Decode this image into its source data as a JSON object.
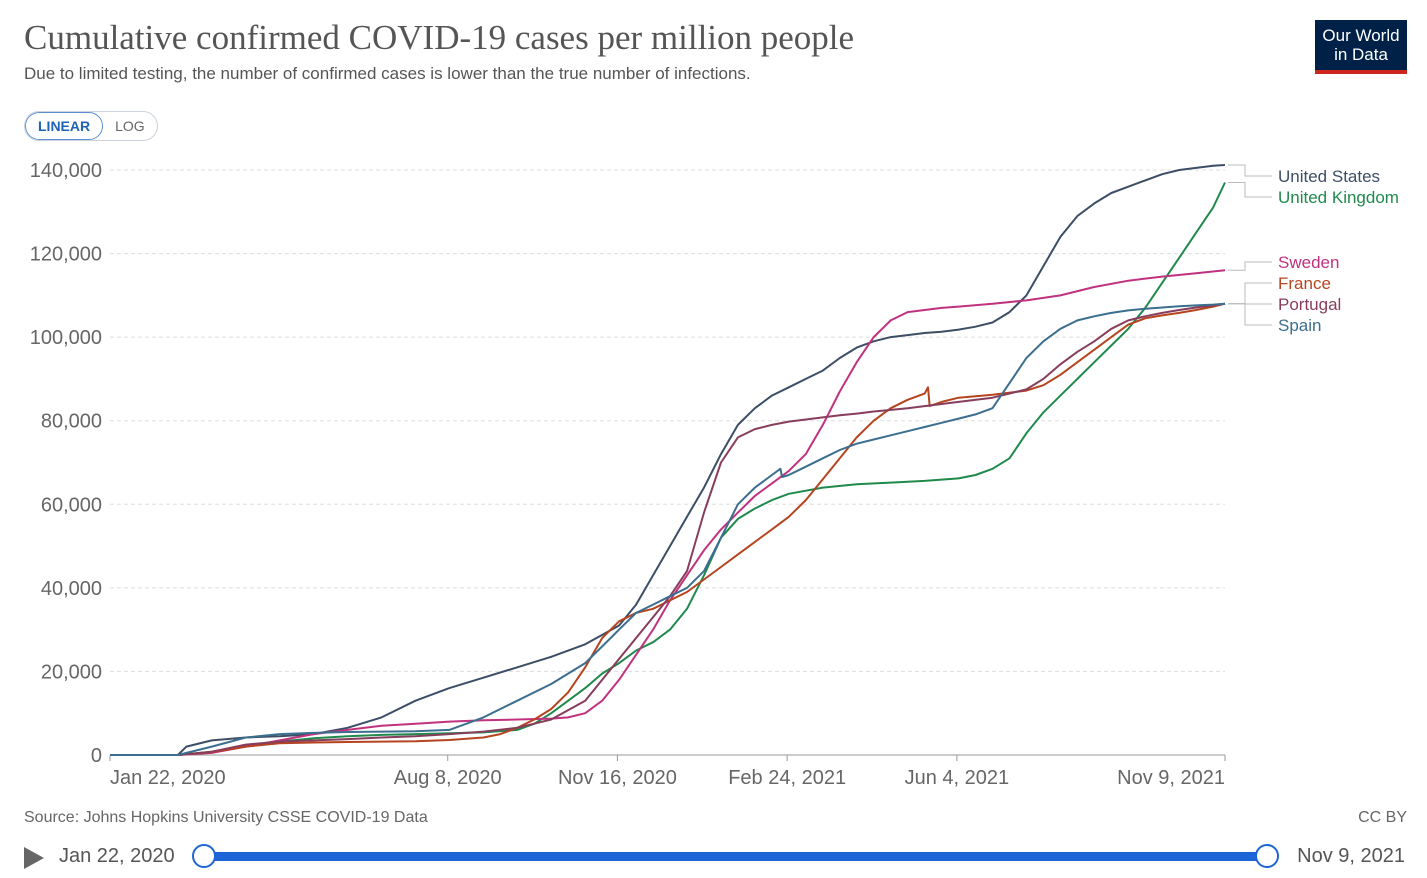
{
  "header": {
    "title": "Cumulative confirmed COVID-19 cases per million people",
    "subtitle": "Due to limited testing, the number of confirmed cases is lower than the true number of infections.",
    "logo_line1": "Our World",
    "logo_line2": "in Data"
  },
  "scale_toggle": {
    "linear_label": "LINEAR",
    "log_label": "LOG",
    "selected": "LINEAR"
  },
  "footer": {
    "source": "Source: Johns Hopkins University CSSE COVID-19 Data",
    "license": "CC BY"
  },
  "timeline": {
    "start_label": "Jan 22, 2020",
    "end_label": "Nov 9, 2021",
    "start_fraction": 0,
    "end_fraction": 1
  },
  "chart_data": {
    "type": "line",
    "title": "Cumulative confirmed COVID-19 cases per million people",
    "subtitle": "Due to limited testing, the number of confirmed cases is lower than the true number of infections.",
    "x_unit": "days since 2020-01-22",
    "xlim": [
      0,
      657
    ],
    "ylim": [
      0,
      140000
    ],
    "y_ticks": [
      0,
      20000,
      40000,
      60000,
      80000,
      100000,
      120000,
      140000
    ],
    "y_tick_labels": [
      "0",
      "20,000",
      "40,000",
      "60,000",
      "80,000",
      "100,000",
      "120,000",
      "140,000"
    ],
    "x_ticks": [
      {
        "x": 0,
        "label": "Jan 22, 2020"
      },
      {
        "x": 199,
        "label": "Aug 8, 2020"
      },
      {
        "x": 299,
        "label": "Nov 16, 2020"
      },
      {
        "x": 399,
        "label": "Feb 24, 2021"
      },
      {
        "x": 499,
        "label": "Jun 4, 2021"
      },
      {
        "x": 657,
        "label": "Nov 9, 2021"
      }
    ],
    "grid": "horizontal-dashed",
    "legend": "right, labels at line ends",
    "series": [
      {
        "name": "United States",
        "color": "#3c4e66",
        "x": [
          0,
          40,
          45,
          60,
          80,
          100,
          120,
          140,
          160,
          180,
          200,
          220,
          240,
          260,
          280,
          300,
          310,
          320,
          330,
          340,
          350,
          360,
          370,
          380,
          390,
          400,
          410,
          420,
          430,
          440,
          450,
          460,
          470,
          480,
          490,
          500,
          510,
          520,
          530,
          540,
          550,
          560,
          570,
          580,
          590,
          600,
          610,
          620,
          630,
          640,
          650,
          657
        ],
        "y": [
          0,
          0,
          2000,
          3500,
          4200,
          4500,
          5000,
          6500,
          9000,
          13000,
          16000,
          18500,
          21000,
          23500,
          26500,
          31000,
          36000,
          43000,
          50000,
          57000,
          64000,
          72000,
          79000,
          83000,
          86000,
          88000,
          90000,
          92000,
          95000,
          97500,
          99000,
          100000,
          100500,
          101000,
          101300,
          101800,
          102500,
          103500,
          106000,
          110000,
          117000,
          124000,
          129000,
          132000,
          134500,
          136000,
          137500,
          139000,
          140000,
          140500,
          141000,
          141200
        ]
      },
      {
        "name": "United Kingdom",
        "color": "#1f8a4c",
        "x": [
          0,
          40,
          60,
          80,
          100,
          120,
          140,
          160,
          180,
          200,
          220,
          240,
          250,
          260,
          270,
          280,
          290,
          300,
          310,
          320,
          330,
          340,
          350,
          360,
          370,
          380,
          390,
          400,
          420,
          440,
          460,
          480,
          500,
          510,
          520,
          530,
          540,
          550,
          560,
          570,
          580,
          590,
          600,
          610,
          620,
          630,
          640,
          650,
          657
        ],
        "y": [
          0,
          0,
          800,
          2200,
          3200,
          4000,
          4500,
          4800,
          5000,
          5200,
          5400,
          6000,
          7500,
          10000,
          13000,
          16000,
          19500,
          22000,
          25000,
          27000,
          30000,
          35000,
          43000,
          52000,
          56500,
          59000,
          61000,
          62500,
          64000,
          64800,
          65200,
          65600,
          66200,
          67000,
          68500,
          71000,
          77000,
          82000,
          86000,
          90000,
          94000,
          98000,
          102000,
          107000,
          113000,
          119000,
          125000,
          131000,
          137000
        ]
      },
      {
        "name": "Sweden",
        "color": "#c0327f",
        "x": [
          0,
          40,
          60,
          80,
          100,
          120,
          140,
          160,
          180,
          200,
          220,
          240,
          260,
          270,
          280,
          290,
          300,
          310,
          320,
          330,
          340,
          350,
          360,
          370,
          380,
          390,
          400,
          410,
          420,
          430,
          440,
          450,
          460,
          470,
          480,
          490,
          500,
          520,
          540,
          560,
          580,
          600,
          620,
          640,
          657
        ],
        "y": [
          0,
          0,
          500,
          2000,
          3500,
          5000,
          6000,
          7000,
          7500,
          8000,
          8300,
          8500,
          8700,
          9000,
          10000,
          13000,
          18000,
          24000,
          30000,
          37000,
          43000,
          49000,
          54000,
          58000,
          62000,
          65000,
          68000,
          72000,
          79000,
          87000,
          94000,
          100000,
          104000,
          106000,
          106500,
          107000,
          107300,
          108000,
          108800,
          110000,
          112000,
          113500,
          114500,
          115300,
          116000
        ]
      },
      {
        "name": "France",
        "color": "#b5441f",
        "x": [
          0,
          40,
          60,
          80,
          100,
          120,
          140,
          160,
          180,
          200,
          220,
          230,
          240,
          250,
          260,
          270,
          280,
          290,
          300,
          310,
          320,
          330,
          340,
          350,
          360,
          370,
          380,
          390,
          400,
          410,
          420,
          430,
          440,
          450,
          460,
          470,
          480,
          482,
          483,
          490,
          500,
          520,
          540,
          550,
          560,
          570,
          580,
          590,
          600,
          610,
          620,
          630,
          640,
          650,
          657
        ],
        "y": [
          0,
          0,
          700,
          2000,
          2800,
          3000,
          3100,
          3200,
          3300,
          3600,
          4200,
          5000,
          6500,
          8500,
          11000,
          15000,
          21000,
          28000,
          32000,
          34000,
          35000,
          37000,
          39000,
          42000,
          45000,
          48000,
          51000,
          54000,
          57000,
          61000,
          66000,
          71000,
          76000,
          80000,
          83000,
          85000,
          86500,
          88000,
          83500,
          84500,
          85500,
          86200,
          87200,
          88500,
          91000,
          94000,
          97000,
          100000,
          103000,
          104500,
          105200,
          105800,
          106500,
          107300,
          108000
        ]
      },
      {
        "name": "Portugal",
        "color": "#883d5c",
        "x": [
          0,
          40,
          60,
          80,
          100,
          120,
          140,
          160,
          180,
          200,
          220,
          240,
          260,
          280,
          290,
          300,
          310,
          320,
          330,
          340,
          350,
          360,
          370,
          380,
          390,
          400,
          410,
          420,
          430,
          440,
          450,
          460,
          470,
          480,
          490,
          500,
          520,
          540,
          550,
          560,
          570,
          580,
          590,
          600,
          610,
          620,
          630,
          640,
          650,
          657
        ],
        "y": [
          0,
          0,
          800,
          2500,
          3200,
          3500,
          3800,
          4200,
          4500,
          5000,
          5600,
          6500,
          8500,
          13000,
          18000,
          23000,
          28000,
          33000,
          38000,
          44000,
          58000,
          70000,
          76000,
          78000,
          79000,
          79800,
          80300,
          80800,
          81300,
          81700,
          82200,
          82600,
          83000,
          83500,
          84000,
          84500,
          85500,
          87500,
          90000,
          93500,
          96500,
          99000,
          102000,
          104000,
          105000,
          105800,
          106500,
          107100,
          107600,
          108000
        ]
      },
      {
        "name": "Spain",
        "color": "#3b6e8f",
        "x": [
          0,
          40,
          60,
          80,
          100,
          120,
          140,
          160,
          180,
          200,
          220,
          240,
          260,
          280,
          290,
          300,
          310,
          320,
          330,
          340,
          350,
          360,
          370,
          380,
          390,
          395,
          396,
          400,
          410,
          420,
          430,
          440,
          450,
          460,
          470,
          480,
          490,
          500,
          510,
          520,
          530,
          540,
          550,
          560,
          570,
          580,
          590,
          600,
          610,
          620,
          630,
          640,
          650,
          657
        ],
        "y": [
          0,
          0,
          2000,
          4200,
          5000,
          5300,
          5500,
          5600,
          5700,
          6000,
          9000,
          13000,
          17000,
          22000,
          26000,
          30000,
          34000,
          36000,
          38000,
          40000,
          44000,
          52000,
          60000,
          64000,
          67000,
          68500,
          66500,
          67000,
          69000,
          71000,
          73000,
          74500,
          75500,
          76500,
          77500,
          78500,
          79500,
          80500,
          81500,
          83000,
          89000,
          95000,
          99000,
          102000,
          104000,
          105000,
          105800,
          106400,
          106800,
          107100,
          107400,
          107600,
          107800,
          108000
        ]
      }
    ]
  }
}
